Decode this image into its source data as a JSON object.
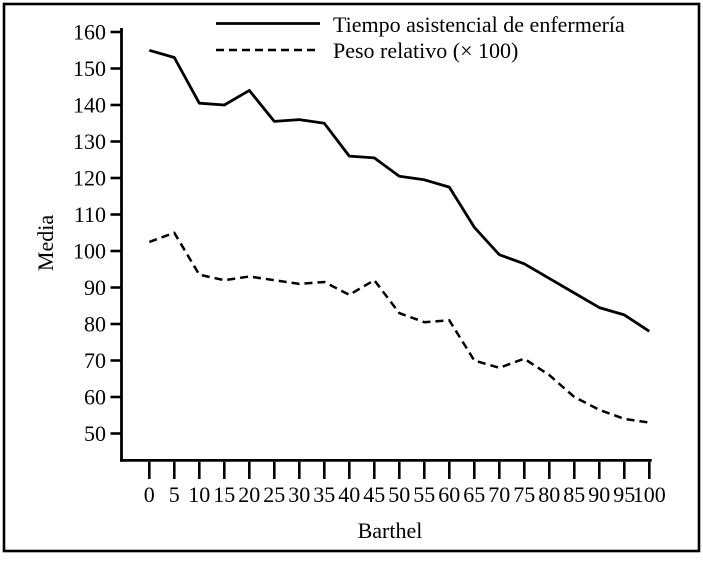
{
  "figure": {
    "background_color": "#ffffff",
    "border_color": "#000000",
    "line_color": "#000000"
  },
  "chart_data": {
    "type": "line",
    "title": "",
    "xlabel": "Barthel",
    "ylabel": "Media",
    "x": [
      0,
      5,
      10,
      15,
      20,
      25,
      30,
      35,
      40,
      45,
      50,
      55,
      60,
      65,
      70,
      75,
      80,
      85,
      90,
      95,
      100
    ],
    "xticks": [
      0,
      5,
      10,
      15,
      20,
      25,
      30,
      35,
      40,
      45,
      50,
      55,
      60,
      65,
      70,
      75,
      80,
      85,
      90,
      95,
      100
    ],
    "yticks": [
      160,
      150,
      140,
      130,
      120,
      110,
      100,
      90,
      80,
      70,
      60,
      50
    ],
    "ylim": [
      42,
      161
    ],
    "grid": false,
    "legend_position": "top",
    "series": [
      {
        "name": "Tiempo asistencial de enfermería",
        "style": "solid",
        "color": "#000000",
        "values": [
          155,
          153,
          140.5,
          140,
          144,
          135.5,
          136,
          135,
          126,
          125.5,
          120.5,
          119.5,
          117.5,
          106.5,
          99,
          96.5,
          92.5,
          88.5,
          84.5,
          82.5,
          78
        ]
      },
      {
        "name": "Peso relativo (× 100)",
        "style": "dashed",
        "color": "#000000",
        "values": [
          102.5,
          105,
          93.5,
          92,
          93,
          92,
          91,
          91.5,
          88,
          92,
          83,
          80.5,
          81,
          70,
          68,
          70.5,
          66,
          60,
          56.5,
          54,
          53
        ]
      }
    ]
  }
}
